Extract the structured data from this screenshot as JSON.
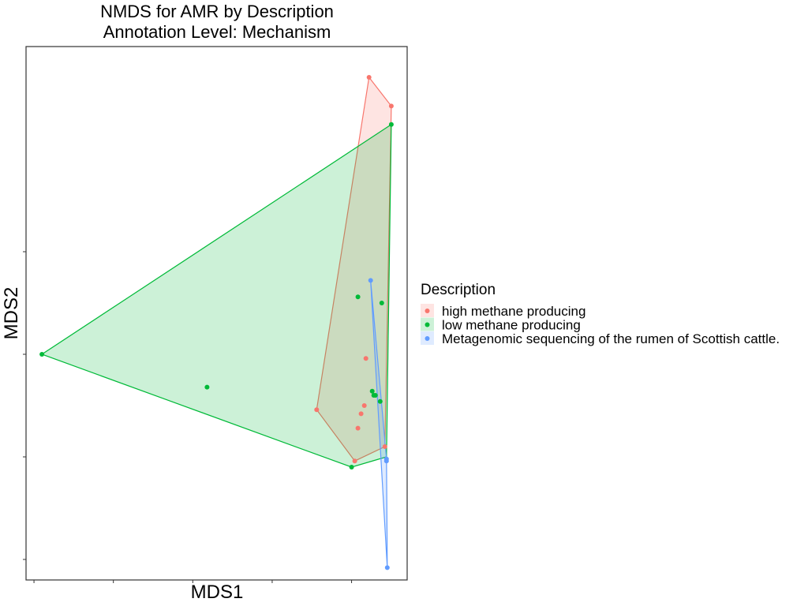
{
  "chart_data": {
    "type": "scatter",
    "title": [
      "NMDS for AMR by Description",
      "Annotation Level: Mechanism"
    ],
    "xlabel": "MDS1",
    "ylabel": "MDS2",
    "xlim": [
      -2.05,
      0.35
    ],
    "ylim": [
      -1.1,
      1.5
    ],
    "x_ticks": [
      -2.0,
      -1.5,
      -1.0,
      -0.5,
      0.0
    ],
    "y_ticks": [
      -1.0,
      -0.5,
      0.0,
      0.5
    ],
    "tick_labels_shown": false,
    "grid": false,
    "legend": {
      "title": "Description",
      "placement": "right"
    },
    "series": [
      {
        "name": "high methane producing",
        "color": "#F8766D",
        "x": [
          0.11,
          0.25,
          -0.22,
          0.04,
          0.02,
          0.08,
          0.21,
          0.06,
          0.09
        ],
        "y": [
          1.35,
          1.21,
          -0.27,
          -0.36,
          -0.52,
          -0.25,
          -0.45,
          -0.29,
          -0.02
        ],
        "hull": [
          [
            0.11,
            1.35
          ],
          [
            0.25,
            1.21
          ],
          [
            0.21,
            -0.45
          ],
          [
            0.02,
            -0.52
          ],
          [
            -0.22,
            -0.27
          ]
        ]
      },
      {
        "name": "low methane producing",
        "color": "#00BA38",
        "x": [
          0.25,
          -1.95,
          -0.91,
          0.0,
          0.04,
          0.19,
          0.13,
          0.14,
          0.15,
          0.18
        ],
        "y": [
          1.12,
          0.0,
          -0.16,
          -0.55,
          0.28,
          0.25,
          -0.18,
          -0.2,
          -0.2,
          -0.23
        ],
        "hull": [
          [
            0.25,
            1.12
          ],
          [
            0.22,
            -0.5
          ],
          [
            0.0,
            -0.55
          ],
          [
            -1.95,
            0.0
          ]
        ]
      },
      {
        "name": "Metagenomic sequencing of the rumen of Scottish cattle.",
        "color": "#619CFF",
        "x": [
          0.12,
          0.22,
          0.22,
          0.225
        ],
        "y": [
          0.36,
          -0.51,
          -0.52,
          -1.04
        ],
        "hull": [
          [
            0.12,
            0.36
          ],
          [
            0.22,
            -0.51
          ],
          [
            0.225,
            -1.04
          ]
        ]
      }
    ]
  }
}
